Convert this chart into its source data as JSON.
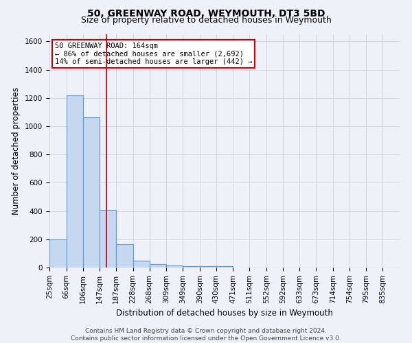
{
  "title": "50, GREENWAY ROAD, WEYMOUTH, DT3 5BD",
  "subtitle": "Size of property relative to detached houses in Weymouth",
  "xlabel": "Distribution of detached houses by size in Weymouth",
  "ylabel": "Number of detached properties",
  "footer_line1": "Contains HM Land Registry data © Crown copyright and database right 2024.",
  "footer_line2": "Contains public sector information licensed under the Open Government Licence v3.0.",
  "bin_labels": [
    "25sqm",
    "66sqm",
    "106sqm",
    "147sqm",
    "187sqm",
    "228sqm",
    "268sqm",
    "309sqm",
    "349sqm",
    "390sqm",
    "430sqm",
    "471sqm",
    "511sqm",
    "552sqm",
    "592sqm",
    "633sqm",
    "673sqm",
    "714sqm",
    "754sqm",
    "795sqm",
    "835sqm"
  ],
  "bar_values": [
    200,
    1220,
    1065,
    410,
    165,
    50,
    25,
    15,
    10,
    10,
    10,
    0,
    0,
    0,
    0,
    0,
    0,
    0,
    0,
    0,
    0
  ],
  "bar_color": "#c5d8f0",
  "bar_edge_color": "#5b9bd5",
  "grid_color": "#d0d8e8",
  "background_color": "#eef2f8",
  "annotation_line1": "50 GREENWAY ROAD: 164sqm",
  "annotation_line2": "← 86% of detached houses are smaller (2,692)",
  "annotation_line3": "14% of semi-detached houses are larger (442) →",
  "annotation_box_color": "#ffffff",
  "annotation_box_edge": "#cc0000",
  "redline_x": 164,
  "bin_edges": [
    25,
    66,
    106,
    147,
    187,
    228,
    268,
    309,
    349,
    390,
    430,
    471,
    511,
    552,
    592,
    633,
    673,
    714,
    754,
    795,
    835
  ],
  "ylim": [
    0,
    1650
  ],
  "title_fontsize": 10,
  "subtitle_fontsize": 9,
  "axis_label_fontsize": 8.5,
  "tick_fontsize": 7.5,
  "annotation_fontsize": 7.5,
  "footer_fontsize": 6.5
}
